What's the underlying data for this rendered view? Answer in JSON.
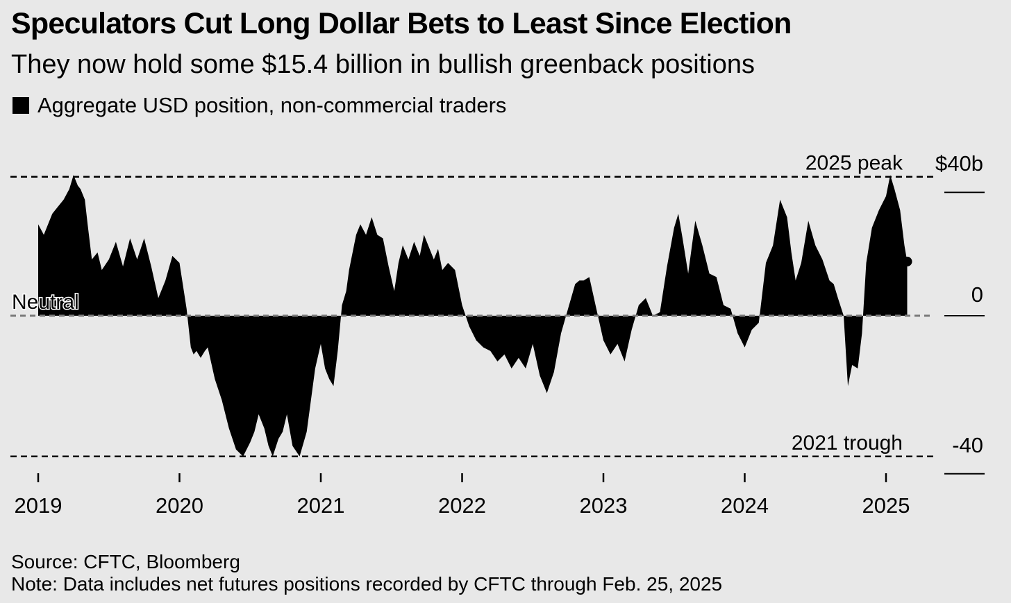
{
  "header": {
    "title": "Speculators Cut Long Dollar Bets to Least Since Election",
    "subtitle": "They now hold some $15.4 billion in bullish greenback positions"
  },
  "legend": {
    "label": "Aggregate USD position, non-commercial traders",
    "color": "#000000"
  },
  "footer": {
    "source": "Source: CFTC, Bloomberg",
    "note": "Note: Data includes net futures positions recorded by CFTC through Feb. 25, 2025"
  },
  "chart_data": {
    "type": "area",
    "title": "Speculators Cut Long Dollar Bets to Least Since Election",
    "subtitle": "They now hold some $15.4 billion in bullish greenback positions",
    "unit": "$ billion",
    "ylim": [
      -45,
      45
    ],
    "y_ticks": [
      {
        "value": 40,
        "label": "$40b"
      },
      {
        "value": 0,
        "label": "0"
      },
      {
        "value": -40,
        "label": "-40"
      }
    ],
    "x_ticks": [
      "2019",
      "2020",
      "2021",
      "2022",
      "2023",
      "2024",
      "2025"
    ],
    "reference_lines": [
      {
        "label": "2025 peak",
        "value": 39.5
      },
      {
        "label": "Neutral",
        "value": 0
      },
      {
        "label": "2021 trough",
        "value": -40
      }
    ],
    "fill_color": "#000000",
    "series": [
      {
        "name": "Aggregate USD position, non-commercial traders",
        "x": [
          2019.0,
          2019.04,
          2019.1,
          2019.14,
          2019.18,
          2019.22,
          2019.25,
          2019.28,
          2019.3,
          2019.33,
          2019.35,
          2019.38,
          2019.42,
          2019.45,
          2019.5,
          2019.55,
          2019.6,
          2019.65,
          2019.7,
          2019.75,
          2019.8,
          2019.85,
          2019.9,
          2019.95,
          2020.0,
          2020.05,
          2020.08,
          2020.1,
          2020.12,
          2020.15,
          2020.18,
          2020.2,
          2020.25,
          2020.3,
          2020.35,
          2020.4,
          2020.45,
          2020.5,
          2020.53,
          2020.56,
          2020.6,
          2020.63,
          2020.66,
          2020.7,
          2020.73,
          2020.76,
          2020.8,
          2020.85,
          2020.9,
          2020.93,
          2020.96,
          2021.0,
          2021.03,
          2021.06,
          2021.09,
          2021.12,
          2021.15,
          2021.18,
          2021.2,
          2021.25,
          2021.28,
          2021.32,
          2021.36,
          2021.4,
          2021.44,
          2021.48,
          2021.52,
          2021.55,
          2021.58,
          2021.62,
          2021.66,
          2021.7,
          2021.73,
          2021.76,
          2021.8,
          2021.83,
          2021.86,
          2021.9,
          2021.95,
          2022.0,
          2022.05,
          2022.1,
          2022.15,
          2022.2,
          2022.25,
          2022.3,
          2022.35,
          2022.4,
          2022.45,
          2022.5,
          2022.55,
          2022.6,
          2022.65,
          2022.7,
          2022.75,
          2022.8,
          2022.83,
          2022.86,
          2022.9,
          2022.95,
          2023.0,
          2023.05,
          2023.1,
          2023.15,
          2023.2,
          2023.25,
          2023.3,
          2023.35,
          2023.4,
          2023.45,
          2023.5,
          2023.53,
          2023.56,
          2023.6,
          2023.65,
          2023.7,
          2023.75,
          2023.8,
          2023.85,
          2023.9,
          2023.95,
          2024.0,
          2024.05,
          2024.1,
          2024.15,
          2024.2,
          2024.25,
          2024.3,
          2024.33,
          2024.36,
          2024.4,
          2024.45,
          2024.5,
          2024.55,
          2024.6,
          2024.63,
          2024.66,
          2024.7,
          2024.73,
          2024.76,
          2024.8,
          2024.83,
          2024.86,
          2024.9,
          2024.95,
          2025.0,
          2025.03,
          2025.06,
          2025.1,
          2025.13,
          2025.15
        ],
        "values": [
          26,
          23,
          29,
          31,
          33,
          36,
          40,
          37,
          36,
          33,
          26,
          16,
          18,
          13,
          16,
          21,
          14,
          22,
          16,
          22,
          14,
          5,
          10,
          17,
          15,
          2,
          -9,
          -11,
          -10,
          -12,
          -10,
          -9,
          -18,
          -24,
          -32,
          -38,
          -40,
          -36,
          -33,
          -28,
          -32,
          -37,
          -40,
          -35,
          -33,
          -28,
          -37,
          -40,
          -33,
          -24,
          -15,
          -8,
          -15,
          -18,
          -20,
          -10,
          3,
          7,
          13,
          23,
          26,
          23,
          28,
          23,
          22,
          14,
          7,
          15,
          20,
          16,
          21,
          17,
          23,
          20,
          16,
          19,
          13,
          15,
          13,
          3,
          -3,
          -7,
          -9,
          -10,
          -13,
          -11,
          -15,
          -12,
          -15,
          -8,
          -17,
          -22,
          -16,
          -5,
          2,
          9,
          10,
          10,
          11,
          2,
          -7,
          -11,
          -8,
          -13,
          -4,
          3,
          5,
          0,
          1,
          14,
          25,
          29,
          22,
          12,
          27,
          20,
          12,
          11,
          3,
          2,
          -5,
          -9,
          -4,
          -2,
          15,
          20,
          33,
          28,
          18,
          10,
          15,
          27,
          20,
          16,
          10,
          9,
          5,
          0,
          -20,
          -14,
          -15,
          -5,
          15,
          25,
          30,
          34,
          40,
          36,
          30,
          20,
          15.4
        ]
      }
    ]
  }
}
